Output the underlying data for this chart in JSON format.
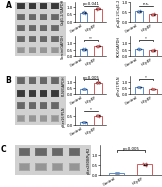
{
  "color_control": "#5b8fd4",
  "color_hfpkm": "#d45b5b",
  "xlabel_control": "Control",
  "xlabel_hfpkm": "HFpEF",
  "bg_color": "#f5f5f5",
  "panel_A_bar1": {
    "control_vals": [
      0.55,
      0.5,
      0.65,
      0.72,
      0.6
    ],
    "hfpkm_vals": [
      0.75,
      0.88,
      0.92,
      0.82,
      0.9
    ],
    "ylim": [
      0,
      1.3
    ],
    "yticks": [
      0,
      0.5,
      1.0
    ],
    "ylabel": "Caβ1.2/GAPDH",
    "pval": "p=0.041"
  },
  "panel_A_bar2": {
    "control_vals": [
      0.55,
      0.6,
      0.5,
      0.48,
      0.52
    ],
    "hfpkm_vals": [
      0.38,
      0.32,
      0.42,
      0.35,
      0.4
    ],
    "ylim": [
      0,
      1.0
    ],
    "yticks": [
      0,
      0.5,
      1.0
    ],
    "ylabel": "pCaβ1.2/Caβ1.2",
    "pval": "n.s."
  },
  "panel_A_bar3": {
    "control_vals": [
      0.5,
      0.58,
      0.52,
      0.45,
      0.6
    ],
    "hfpkm_vals": [
      0.72,
      0.78,
      0.85,
      0.7,
      0.8
    ],
    "ylim": [
      0,
      1.5
    ],
    "yticks": [
      0,
      0.5,
      1.0
    ],
    "ylabel": "Sorcin/GAPDH",
    "pval": "**"
  },
  "panel_A_bar4": {
    "control_vals": [
      0.58,
      0.52,
      0.62,
      0.48,
      0.55
    ],
    "hfpkm_vals": [
      0.48,
      0.42,
      0.52,
      0.38,
      0.45
    ],
    "ylim": [
      0,
      1.5
    ],
    "yticks": [
      0,
      0.5,
      1.0
    ],
    "ylabel": "RCK/GAPDH",
    "pval": "*"
  },
  "panel_B_bar1": {
    "control_vals": [
      0.38,
      0.45,
      0.4,
      0.5,
      0.42
    ],
    "hfpkm_vals": [
      0.88,
      0.95,
      0.9,
      1.05,
      0.98
    ],
    "ylim": [
      0,
      1.5
    ],
    "yticks": [
      0,
      0.5,
      1.0
    ],
    "ylabel": "PLN/GAPDH",
    "pval": "p<0.005"
  },
  "panel_B_bar2": {
    "control_vals": [
      0.58,
      0.52,
      0.62,
      0.55,
      0.6
    ],
    "hfpkm_vals": [
      0.42,
      0.48,
      0.38,
      0.45,
      0.4
    ],
    "ylim": [
      0,
      1.5
    ],
    "yticks": [
      0,
      0.5,
      1.0
    ],
    "ylabel": "pThr17/PLN",
    "pval": "*"
  },
  "panel_B_bar3": {
    "control_vals": [
      0.18,
      0.14,
      0.2,
      0.16,
      0.15
    ],
    "hfpkm_vals": [
      0.52,
      0.58,
      0.48,
      0.55,
      0.5
    ],
    "ylim": [
      0,
      1.0
    ],
    "yticks": [
      0,
      0.5
    ],
    "ylabel": "pSer16/PLN",
    "pval": "*"
  },
  "panel_C_bar1": {
    "control_vals": [
      0.08,
      0.06,
      0.1,
      0.07,
      0.09
    ],
    "hfpkm_vals": [
      0.52,
      0.58,
      0.45,
      0.55,
      0.6
    ],
    "ylim": [
      0,
      1.5
    ],
    "yticks": [
      0,
      0.5,
      1.0
    ],
    "ylabel": "pSer2808/RyR2",
    "pval": "p<0.005"
  }
}
